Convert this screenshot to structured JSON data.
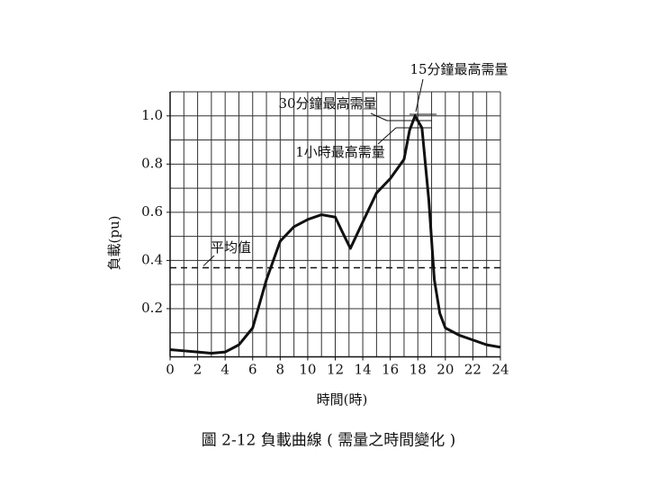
{
  "chart_data": {
    "type": "line",
    "x_label": "時間(時)",
    "y_label": "負載(pu)",
    "caption": "圖 2-12    負載曲線 ( 需量之時間變化 )",
    "x": [
      0,
      1,
      2,
      3,
      4,
      5,
      6,
      7,
      8,
      9,
      10,
      11,
      12,
      12.5,
      13.1,
      14,
      15,
      16,
      17,
      17.4,
      17.8,
      18.3,
      18.8,
      19.2,
      19.6,
      20,
      21,
      22,
      23,
      24
    ],
    "series": [
      {
        "color": "#111111",
        "values": [
          0.03,
          0.025,
          0.02,
          0.015,
          0.02,
          0.05,
          0.12,
          0.32,
          0.48,
          0.54,
          0.57,
          0.59,
          0.58,
          0.52,
          0.45,
          0.56,
          0.68,
          0.74,
          0.82,
          0.94,
          1.0,
          0.95,
          0.65,
          0.32,
          0.18,
          0.12,
          0.09,
          0.07,
          0.05,
          0.04
        ]
      }
    ],
    "average": {
      "value": 0.37,
      "label": "平均值"
    },
    "annotations": [
      "15分鐘最高需量",
      "30分鐘最高需量",
      "1小時最高需量"
    ],
    "xlim": [
      0,
      24
    ],
    "xticks": [
      0,
      2,
      4,
      6,
      8,
      10,
      12,
      14,
      16,
      18,
      20,
      22,
      24
    ],
    "ylim": [
      0,
      1.1
    ],
    "yticks": [
      0.2,
      0.4,
      0.6,
      0.8,
      {
        "value": 1,
        "label": "1.0"
      }
    ],
    "grid": true,
    "x_grid_step": 1,
    "y_grid_step": 0.1
  }
}
